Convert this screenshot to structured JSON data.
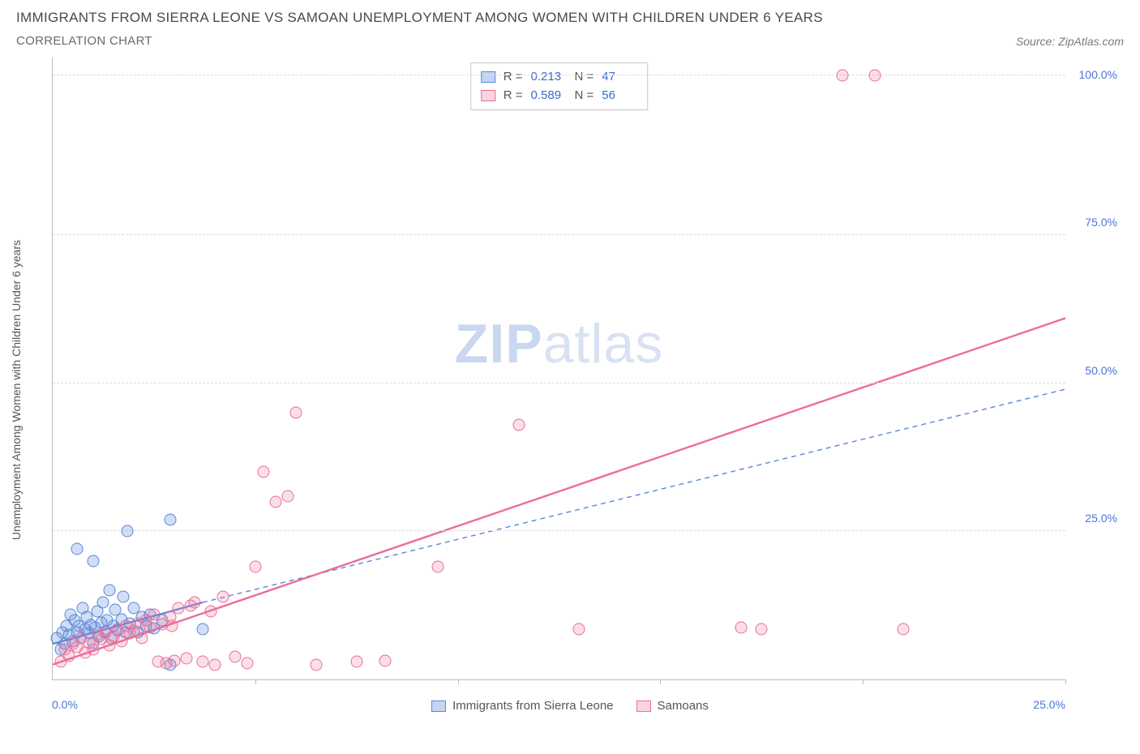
{
  "title": "IMMIGRANTS FROM SIERRA LEONE VS SAMOAN UNEMPLOYMENT AMONG WOMEN WITH CHILDREN UNDER 6 YEARS",
  "subtitle": "CORRELATION CHART",
  "source": "Source: ZipAtlas.com",
  "yaxis_label": "Unemployment Among Women with Children Under 6 years",
  "watermark": {
    "zip": "ZIP",
    "atlas": "atlas"
  },
  "chart": {
    "type": "scatter",
    "xlim": [
      0,
      25
    ],
    "ylim": [
      0,
      105
    ],
    "x_axis_label_left": "0.0%",
    "x_axis_label_right": "25.0%",
    "y2_ticks": [
      {
        "v": 25,
        "label": "25.0%"
      },
      {
        "v": 50,
        "label": "50.0%"
      },
      {
        "v": 75,
        "label": "75.0%"
      },
      {
        "v": 100,
        "label": "100.0%"
      }
    ],
    "grid_y": [
      25,
      50,
      75,
      102
    ],
    "x_ticks": [
      5,
      10,
      15,
      20,
      25
    ],
    "grid_color": "#dcdcdc",
    "axis_color": "#bdbdbd",
    "background_color": "#ffffff",
    "series": [
      {
        "name": "Immigrants from Sierra Leone",
        "color": "#5a87dc",
        "fill": "rgba(90,135,220,0.28)",
        "marker_size": 15,
        "R": "0.213",
        "N": "47",
        "trend": {
          "x1": 0,
          "y1": 6,
          "x2": 3.7,
          "y2": 13,
          "dashed": false,
          "width": 2.2,
          "ext": {
            "x2": 25,
            "y2": 49,
            "dashed": true,
            "width": 1.4
          }
        },
        "points": [
          [
            0.1,
            7
          ],
          [
            0.2,
            5
          ],
          [
            0.25,
            8
          ],
          [
            0.3,
            6
          ],
          [
            0.35,
            9
          ],
          [
            0.4,
            7.5
          ],
          [
            0.45,
            11
          ],
          [
            0.5,
            6.5
          ],
          [
            0.55,
            10
          ],
          [
            0.6,
            8
          ],
          [
            0.6,
            22
          ],
          [
            0.65,
            9
          ],
          [
            0.7,
            7
          ],
          [
            0.75,
            12
          ],
          [
            0.8,
            8.5
          ],
          [
            0.85,
            10.5
          ],
          [
            0.9,
            7.8
          ],
          [
            0.95,
            9.2
          ],
          [
            1.0,
            6.2
          ],
          [
            1.0,
            20
          ],
          [
            1.05,
            8.8
          ],
          [
            1.1,
            11.5
          ],
          [
            1.15,
            7.3
          ],
          [
            1.2,
            9.6
          ],
          [
            1.25,
            13
          ],
          [
            1.3,
            8.1
          ],
          [
            1.35,
            10
          ],
          [
            1.4,
            15
          ],
          [
            1.45,
            7
          ],
          [
            1.5,
            9
          ],
          [
            1.55,
            11.8
          ],
          [
            1.6,
            8.4
          ],
          [
            1.7,
            10.2
          ],
          [
            1.75,
            14
          ],
          [
            1.8,
            7.9
          ],
          [
            1.85,
            25
          ],
          [
            1.9,
            9.4
          ],
          [
            2.0,
            12
          ],
          [
            2.1,
            8
          ],
          [
            2.2,
            10.6
          ],
          [
            2.3,
            9.1
          ],
          [
            2.4,
            11
          ],
          [
            2.5,
            8.6
          ],
          [
            2.7,
            10
          ],
          [
            2.9,
            27
          ],
          [
            2.9,
            2.5
          ],
          [
            3.7,
            8.5
          ]
        ]
      },
      {
        "name": "Samoans",
        "color": "#eb6e96",
        "fill": "rgba(235,110,150,0.22)",
        "marker_size": 15,
        "R": "0.589",
        "N": "56",
        "trend": {
          "x1": 0,
          "y1": 2.5,
          "x2": 25,
          "y2": 61,
          "dashed": false,
          "width": 2.4
        },
        "points": [
          [
            0.2,
            3
          ],
          [
            0.3,
            5
          ],
          [
            0.4,
            4
          ],
          [
            0.5,
            6
          ],
          [
            0.6,
            5.5
          ],
          [
            0.7,
            7
          ],
          [
            0.8,
            4.5
          ],
          [
            0.9,
            6.2
          ],
          [
            1.0,
            5
          ],
          [
            1.1,
            7.5
          ],
          [
            1.2,
            6.8
          ],
          [
            1.3,
            8
          ],
          [
            1.4,
            5.8
          ],
          [
            1.5,
            7.2
          ],
          [
            1.6,
            8.5
          ],
          [
            1.7,
            6.5
          ],
          [
            1.8,
            9
          ],
          [
            1.9,
            7.8
          ],
          [
            2.0,
            8.2
          ],
          [
            2.1,
            9.5
          ],
          [
            2.2,
            7
          ],
          [
            2.3,
            10
          ],
          [
            2.4,
            8.8
          ],
          [
            2.5,
            11
          ],
          [
            2.6,
            3
          ],
          [
            2.7,
            9.3
          ],
          [
            2.8,
            2.8
          ],
          [
            2.9,
            10.5
          ],
          [
            3.0,
            3.2
          ],
          [
            3.1,
            12
          ],
          [
            3.3,
            3.5
          ],
          [
            3.5,
            13
          ],
          [
            3.7,
            3
          ],
          [
            3.9,
            11.5
          ],
          [
            4.0,
            2.5
          ],
          [
            4.2,
            14
          ],
          [
            4.5,
            3.8
          ],
          [
            5.0,
            19
          ],
          [
            5.2,
            35
          ],
          [
            5.5,
            30
          ],
          [
            5.8,
            31
          ],
          [
            6.0,
            45
          ],
          [
            6.5,
            2.5
          ],
          [
            7.5,
            3
          ],
          [
            8.2,
            3.2
          ],
          [
            9.5,
            19
          ],
          [
            11.5,
            43
          ],
          [
            13.0,
            8.5
          ],
          [
            17.0,
            8.8
          ],
          [
            17.5,
            8.5
          ],
          [
            19.5,
            102
          ],
          [
            20.3,
            102
          ],
          [
            21.0,
            8.5
          ],
          [
            4.8,
            2.8
          ],
          [
            3.4,
            12.5
          ],
          [
            2.95,
            9
          ]
        ]
      }
    ]
  },
  "legend": {
    "series1": "Immigrants from Sierra Leone",
    "series2": "Samoans"
  },
  "stats_labels": {
    "R": "R =",
    "N": "N ="
  }
}
